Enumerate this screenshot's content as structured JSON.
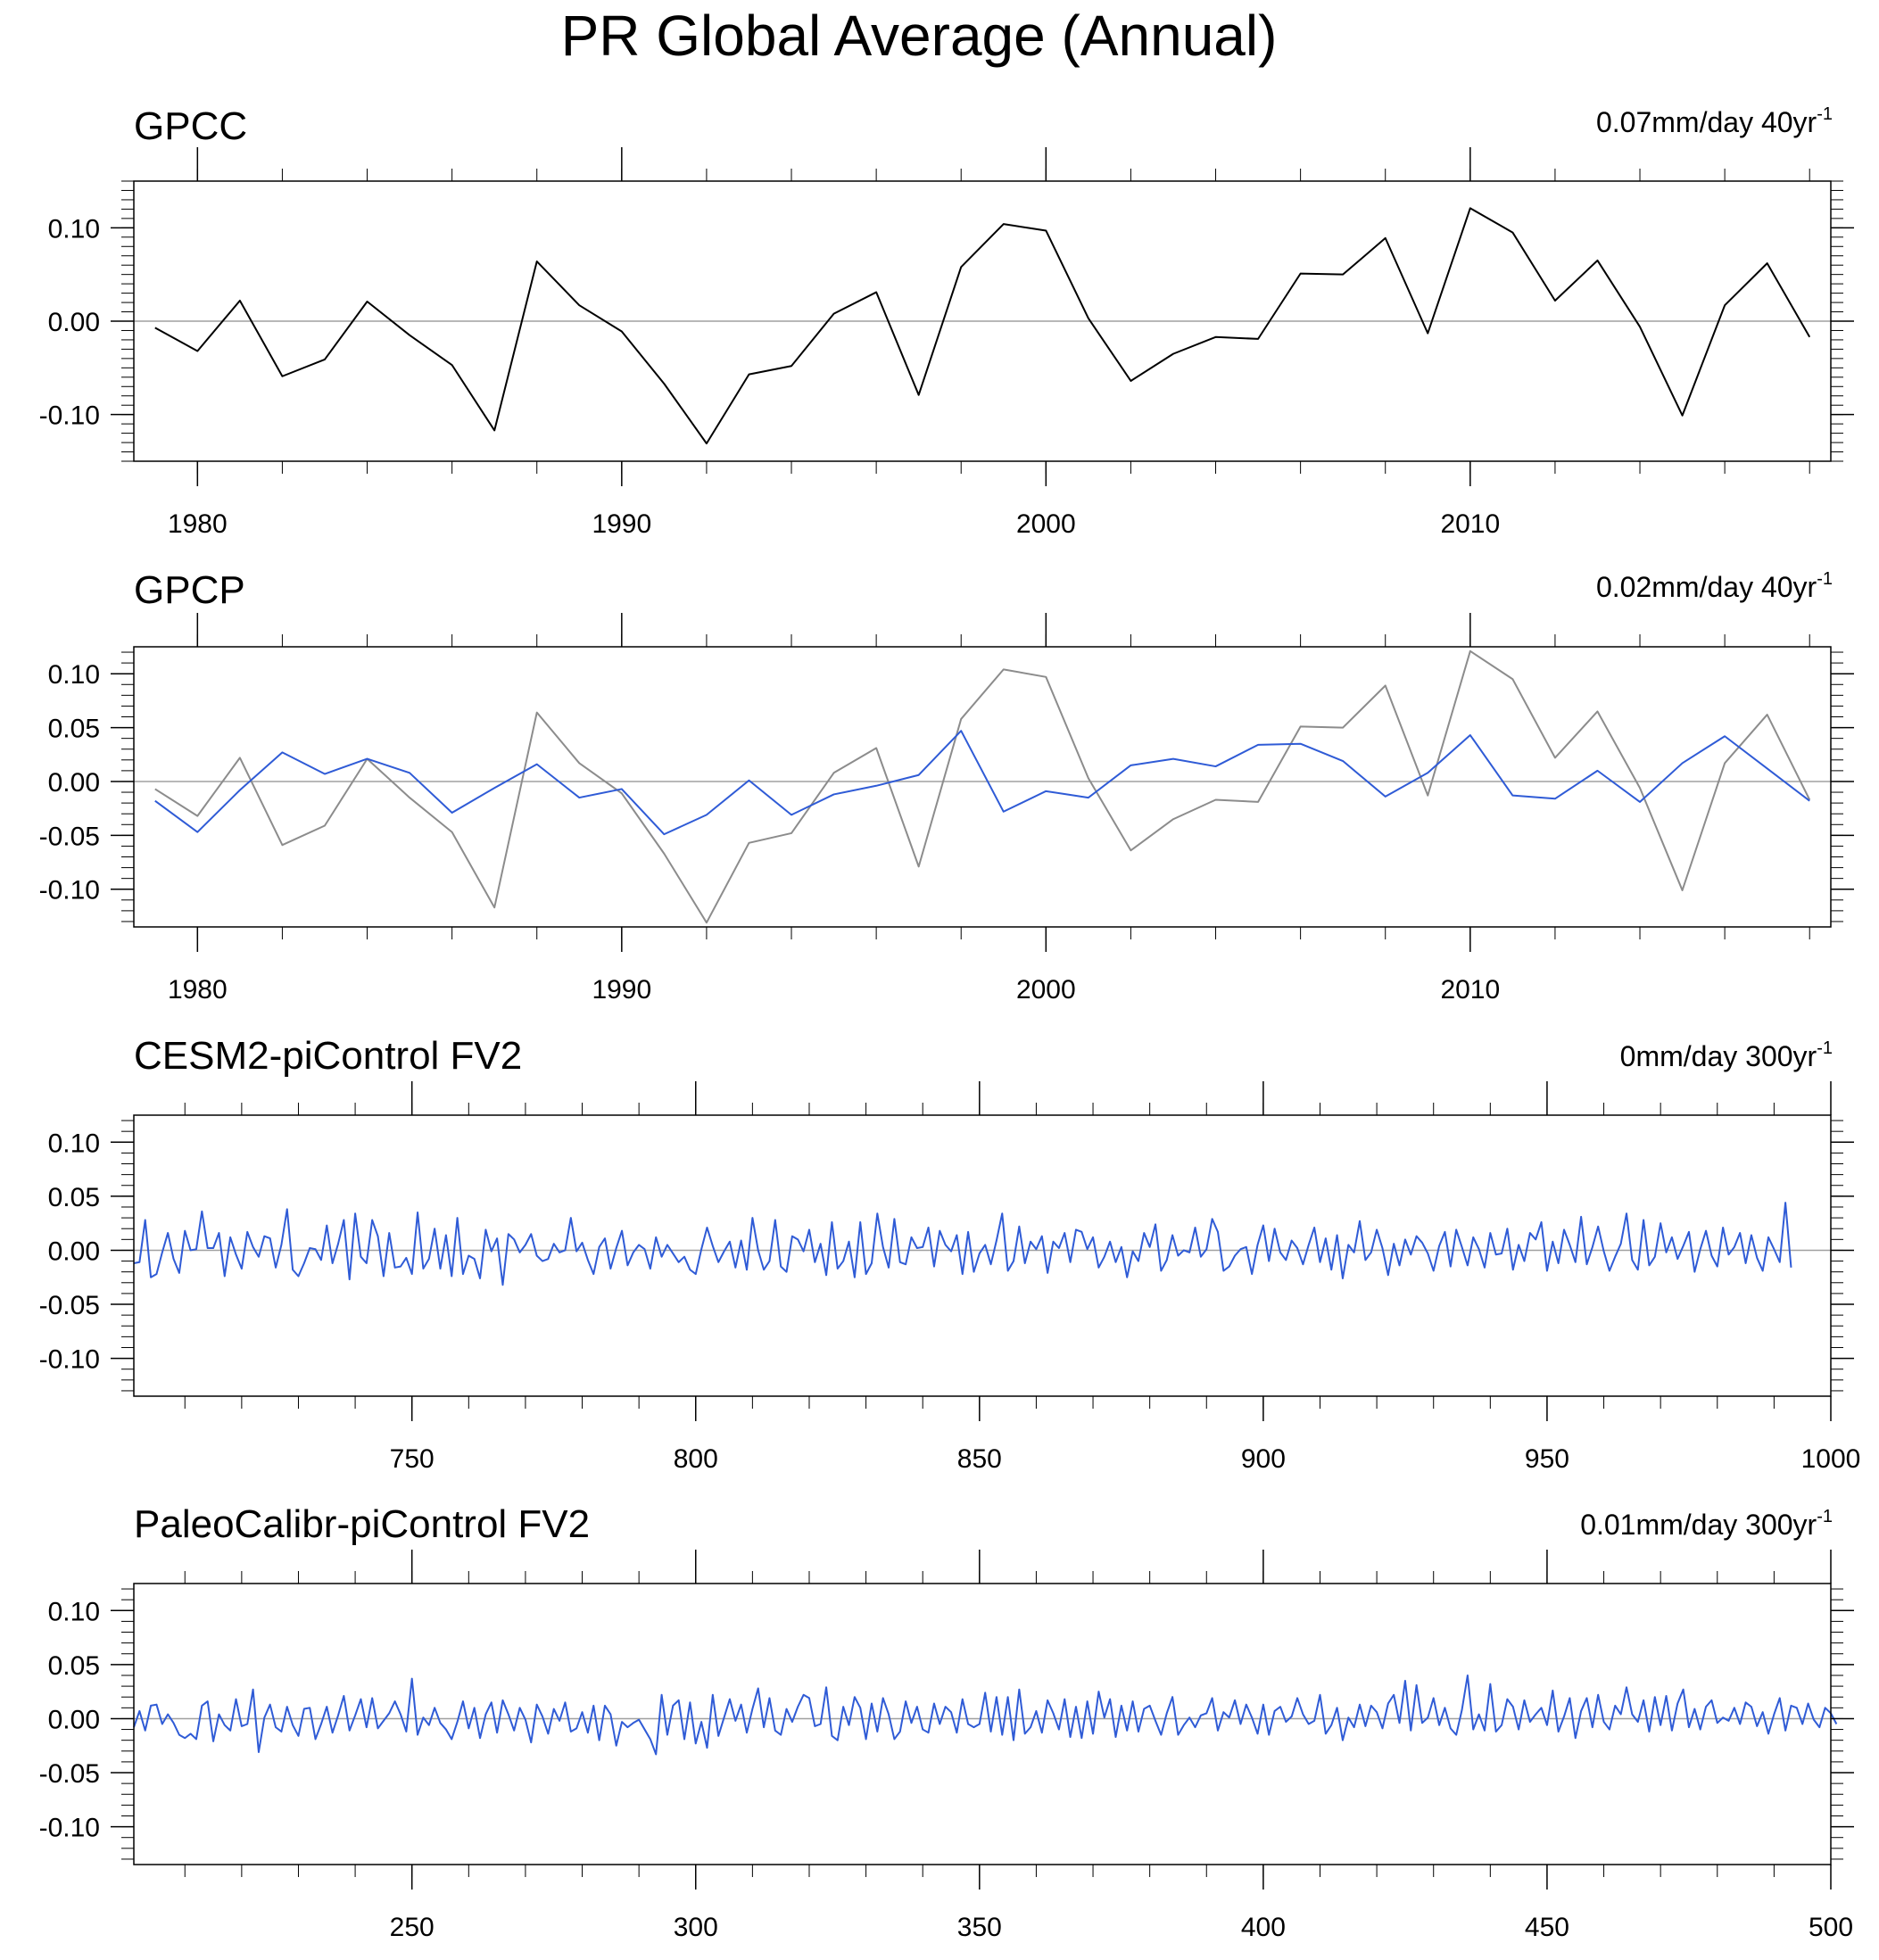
{
  "title": "PR Global Average (Annual)",
  "colors": {
    "obs": "#000000",
    "ref": "#8c8c8c",
    "model": "#2f5bd6",
    "zero": "#a0a0a0",
    "axis": "#000000"
  },
  "chart_data": [
    {
      "type": "line",
      "title": "GPCC",
      "trend_label": "0.07mm/day 40yr",
      "trend_sup": "-1",
      "xlim": [
        1978.5,
        2018.5
      ],
      "ylim": [
        -0.15,
        0.15
      ],
      "xticks": [
        1980,
        1990,
        2000,
        2010
      ],
      "yticks": [
        0.1,
        0.0,
        -0.1
      ],
      "ytick_labels": [
        "0.10",
        "0.00",
        "-0.10"
      ],
      "x_start": 1979,
      "series": [
        {
          "role": "obs",
          "values": [
            -0.007,
            -0.032,
            0.022,
            -0.059,
            -0.041,
            0.021,
            -0.015,
            -0.047,
            -0.117,
            0.064,
            0.017,
            -0.011,
            -0.067,
            -0.131,
            -0.057,
            -0.048,
            0.008,
            0.031,
            -0.079,
            0.058,
            0.104,
            0.097,
            0.003,
            -0.064,
            -0.035,
            -0.017,
            -0.019,
            0.051,
            0.05,
            0.089,
            -0.013,
            0.121,
            0.095,
            0.022,
            0.065,
            -0.006,
            -0.101,
            0.017,
            0.062,
            -0.017
          ]
        }
      ]
    },
    {
      "type": "line",
      "title": "GPCP",
      "trend_label": "0.02mm/day 40yr",
      "trend_sup": "-1",
      "xlim": [
        1978.5,
        2018.5
      ],
      "ylim": [
        -0.135,
        0.125
      ],
      "xticks": [
        1980,
        1990,
        2000,
        2010
      ],
      "yticks": [
        0.1,
        0.05,
        0.0,
        -0.05,
        -0.1
      ],
      "ytick_labels": [
        "0.10",
        "0.05",
        "0.00",
        "-0.05",
        "-0.10"
      ],
      "x_start": 1979,
      "series": [
        {
          "role": "ref",
          "values": [
            -0.007,
            -0.032,
            0.022,
            -0.059,
            -0.041,
            0.021,
            -0.015,
            -0.047,
            -0.117,
            0.064,
            0.017,
            -0.011,
            -0.067,
            -0.131,
            -0.057,
            -0.048,
            0.008,
            0.031,
            -0.079,
            0.058,
            0.104,
            0.097,
            0.003,
            -0.064,
            -0.035,
            -0.017,
            -0.019,
            0.051,
            0.05,
            0.089,
            -0.013,
            0.121,
            0.095,
            0.022,
            0.065,
            -0.006,
            -0.101,
            0.017,
            0.062,
            -0.017
          ]
        },
        {
          "role": "model",
          "values": [
            -0.018,
            -0.047,
            -0.008,
            0.027,
            0.007,
            0.021,
            0.008,
            -0.029,
            -0.006,
            0.016,
            -0.015,
            -0.007,
            -0.049,
            -0.031,
            0.001,
            -0.031,
            -0.012,
            -0.004,
            0.006,
            0.047,
            -0.028,
            -0.009,
            -0.015,
            0.015,
            0.021,
            0.014,
            0.034,
            0.035,
            0.019,
            -0.014,
            0.008,
            0.043,
            -0.013,
            -0.016,
            0.01,
            -0.019,
            0.017,
            0.042,
            0.012,
            -0.018
          ]
        }
      ]
    },
    {
      "type": "line",
      "title": "CESM2-piControl FV2",
      "trend_label": "0mm/day 300yr",
      "trend_sup": "-1",
      "xlim": [
        701,
        1000
      ],
      "ylim": [
        -0.135,
        0.125
      ],
      "xticks": [
        750,
        800,
        850,
        900,
        950,
        1000
      ],
      "yticks": [
        0.1,
        0.05,
        0.0,
        -0.05,
        -0.1
      ],
      "ytick_labels": [
        "0.10",
        "0.05",
        "0.00",
        "-0.05",
        "-0.10"
      ],
      "x_start": 701,
      "series": [
        {
          "role": "model",
          "values": [
            -0.012,
            -0.011,
            0.028,
            -0.025,
            -0.022,
            -0.002,
            0.016,
            -0.008,
            -0.021,
            0.018,
            0.0,
            0.001,
            0.036,
            0.002,
            0.002,
            0.016,
            -0.024,
            0.012,
            -0.004,
            -0.017,
            0.017,
            0.003,
            -0.006,
            0.013,
            0.011,
            -0.016,
            0.005,
            0.038,
            -0.018,
            -0.024,
            -0.012,
            0.002,
            0.001,
            -0.009,
            0.023,
            -0.012,
            0.006,
            0.028,
            -0.027,
            0.034,
            -0.006,
            -0.012,
            0.028,
            0.013,
            -0.024,
            0.016,
            -0.016,
            -0.015,
            -0.007,
            -0.022,
            0.035,
            -0.017,
            -0.008,
            0.02,
            -0.017,
            0.014,
            -0.024,
            0.03,
            -0.022,
            -0.005,
            -0.008,
            -0.026,
            0.019,
            -0.001,
            0.011,
            -0.032,
            0.015,
            0.01,
            -0.002,
            0.005,
            0.015,
            -0.005,
            -0.01,
            -0.008,
            0.006,
            -0.002,
            0.0,
            0.03,
            -0.001,
            0.007,
            -0.009,
            -0.022,
            0.003,
            0.011,
            -0.017,
            0.002,
            0.018,
            -0.014,
            -0.002,
            0.005,
            0.001,
            -0.017,
            0.012,
            -0.006,
            0.005,
            -0.003,
            -0.011,
            -0.006,
            -0.018,
            -0.022,
            0.001,
            0.021,
            0.004,
            -0.011,
            -0.001,
            0.008,
            -0.016,
            0.009,
            -0.018,
            0.03,
            0.0,
            -0.018,
            -0.01,
            0.028,
            -0.015,
            -0.02,
            0.013,
            0.01,
            -0.001,
            0.019,
            -0.011,
            0.006,
            -0.023,
            0.026,
            -0.017,
            -0.01,
            0.008,
            -0.025,
            0.026,
            -0.022,
            -0.012,
            0.034,
            0.003,
            -0.016,
            0.029,
            -0.011,
            -0.013,
            0.012,
            0.002,
            0.003,
            0.021,
            -0.015,
            0.018,
            0.005,
            -0.001,
            0.014,
            -0.022,
            0.017,
            -0.02,
            -0.003,
            0.005,
            -0.013,
            0.009,
            0.034,
            -0.019,
            -0.01,
            0.022,
            -0.012,
            0.008,
            0.001,
            0.013,
            -0.021,
            0.008,
            0.002,
            0.016,
            -0.011,
            0.019,
            0.017,
            0.001,
            0.012,
            -0.016,
            -0.006,
            0.008,
            -0.011,
            0.003,
            -0.025,
            -0.001,
            -0.01,
            0.016,
            0.003,
            0.024,
            -0.019,
            -0.009,
            0.014,
            -0.005,
            0.0,
            -0.002,
            0.021,
            -0.006,
            0.001,
            0.029,
            0.017,
            -0.019,
            -0.015,
            -0.005,
            0.001,
            0.003,
            -0.022,
            0.005,
            0.023,
            -0.01,
            0.02,
            -0.002,
            -0.009,
            0.009,
            0.002,
            -0.013,
            0.005,
            0.021,
            -0.011,
            0.011,
            -0.018,
            0.014,
            -0.026,
            0.005,
            -0.002,
            0.027,
            -0.009,
            -0.002,
            0.019,
            0.002,
            -0.023,
            0.006,
            -0.014,
            0.01,
            -0.004,
            0.013,
            0.007,
            -0.003,
            -0.019,
            0.004,
            0.017,
            -0.015,
            0.019,
            0.003,
            -0.014,
            0.012,
            0.001,
            -0.016,
            0.016,
            -0.004,
            -0.003,
            0.02,
            -0.018,
            0.005,
            -0.01,
            0.016,
            0.01,
            0.026,
            -0.019,
            0.008,
            -0.012,
            0.019,
            0.005,
            -0.011,
            0.031,
            -0.013,
            0.003,
            0.022,
            -0.001,
            -0.019,
            -0.006,
            0.006,
            0.034,
            -0.009,
            -0.018,
            0.028,
            -0.014,
            -0.006,
            0.025,
            -0.002,
            0.012,
            -0.008,
            0.004,
            0.017,
            -0.02,
            0.001,
            0.018,
            -0.005,
            -0.015,
            0.021,
            -0.004,
            0.003,
            0.016,
            -0.012,
            0.014,
            -0.007,
            -0.019,
            0.012,
            0.001,
            -0.011,
            0.044,
            -0.016
          ]
        }
      ]
    },
    {
      "type": "line",
      "title": "PaleoCalibr-piControl FV2",
      "trend_label": "0.01mm/day 300yr",
      "trend_sup": "-1",
      "xlim": [
        201,
        500
      ],
      "ylim": [
        -0.135,
        0.125
      ],
      "xticks": [
        250,
        300,
        350,
        400,
        450,
        500
      ],
      "yticks": [
        0.1,
        0.05,
        0.0,
        -0.05,
        -0.1
      ],
      "ytick_labels": [
        "0.10",
        "0.05",
        "0.00",
        "-0.05",
        "-0.10"
      ],
      "x_start": 201,
      "series": [
        {
          "role": "model",
          "values": [
            -0.008,
            0.007,
            -0.011,
            0.012,
            0.013,
            -0.005,
            0.004,
            -0.004,
            -0.015,
            -0.018,
            -0.014,
            -0.019,
            0.012,
            0.016,
            -0.021,
            0.004,
            -0.006,
            -0.011,
            0.018,
            -0.007,
            -0.005,
            0.027,
            -0.031,
            0.001,
            0.013,
            -0.008,
            -0.012,
            0.011,
            -0.006,
            -0.016,
            0.009,
            0.01,
            -0.019,
            -0.005,
            0.011,
            -0.013,
            0.003,
            0.021,
            -0.011,
            0.003,
            0.018,
            -0.008,
            0.019,
            -0.009,
            -0.002,
            0.005,
            0.016,
            0.004,
            -0.012,
            0.037,
            -0.015,
            0.001,
            -0.006,
            0.01,
            -0.004,
            -0.01,
            -0.019,
            -0.003,
            0.016,
            -0.009,
            0.01,
            -0.018,
            0.004,
            0.015,
            -0.013,
            0.017,
            0.004,
            -0.011,
            0.01,
            -0.001,
            -0.022,
            0.013,
            0.002,
            -0.014,
            0.009,
            -0.002,
            0.015,
            -0.012,
            -0.009,
            0.006,
            -0.013,
            0.012,
            -0.02,
            0.012,
            0.004,
            -0.025,
            -0.003,
            -0.008,
            -0.004,
            -0.001,
            -0.01,
            -0.019,
            -0.033,
            0.022,
            -0.015,
            0.012,
            0.017,
            -0.019,
            0.015,
            -0.023,
            -0.003,
            -0.027,
            0.022,
            -0.016,
            0.001,
            0.018,
            -0.002,
            0.013,
            -0.013,
            0.009,
            0.028,
            -0.008,
            0.019,
            -0.011,
            -0.015,
            0.009,
            -0.003,
            0.011,
            0.022,
            0.019,
            -0.007,
            -0.005,
            0.029,
            -0.016,
            -0.02,
            0.011,
            -0.006,
            0.02,
            0.01,
            -0.019,
            0.014,
            -0.012,
            0.019,
            0.004,
            -0.019,
            -0.012,
            0.016,
            -0.004,
            0.011,
            -0.01,
            -0.013,
            0.014,
            -0.005,
            0.011,
            0.006,
            -0.013,
            0.018,
            -0.005,
            -0.008,
            -0.005,
            0.024,
            -0.012,
            0.02,
            -0.015,
            0.02,
            -0.02,
            0.027,
            -0.014,
            -0.008,
            0.007,
            -0.013,
            0.017,
            0.005,
            -0.01,
            0.018,
            -0.017,
            0.011,
            -0.018,
            0.016,
            -0.014,
            0.025,
            0.001,
            0.018,
            -0.017,
            0.012,
            -0.011,
            0.016,
            -0.012,
            0.009,
            0.012,
            -0.002,
            -0.015,
            0.005,
            0.02,
            -0.015,
            -0.006,
            0.001,
            -0.008,
            0.003,
            0.005,
            0.019,
            -0.011,
            0.006,
            0.001,
            0.017,
            -0.005,
            0.013,
            0.001,
            -0.014,
            0.013,
            -0.015,
            0.007,
            0.011,
            -0.003,
            0.002,
            0.019,
            0.004,
            -0.005,
            -0.002,
            0.022,
            -0.014,
            -0.006,
            0.01,
            -0.02,
            0.001,
            -0.008,
            0.013,
            -0.007,
            0.012,
            0.006,
            -0.009,
            0.014,
            0.022,
            -0.004,
            0.035,
            -0.011,
            0.031,
            -0.004,
            0.001,
            0.019,
            -0.006,
            0.01,
            -0.009,
            -0.015,
            0.008,
            0.04,
            -0.01,
            0.004,
            -0.011,
            0.032,
            -0.012,
            -0.006,
            0.018,
            0.011,
            -0.01,
            0.017,
            -0.003,
            0.004,
            0.01,
            -0.006,
            0.026,
            -0.012,
            0.002,
            0.019,
            -0.018,
            0.007,
            0.019,
            -0.008,
            0.022,
            -0.003,
            -0.01,
            0.012,
            0.004,
            0.029,
            0.004,
            -0.003,
            0.017,
            -0.012,
            0.02,
            -0.006,
            0.021,
            -0.011,
            0.014,
            0.027,
            -0.008,
            0.009,
            -0.01,
            0.011,
            0.017,
            -0.004,
            0.001,
            -0.002,
            0.01,
            -0.005,
            0.015,
            0.011,
            -0.007,
            0.006,
            -0.014,
            0.004,
            0.019,
            -0.011,
            0.012,
            0.01,
            -0.005,
            0.014,
            -0.001,
            -0.008,
            0.01,
            0.005,
            -0.005
          ]
        }
      ]
    }
  ]
}
